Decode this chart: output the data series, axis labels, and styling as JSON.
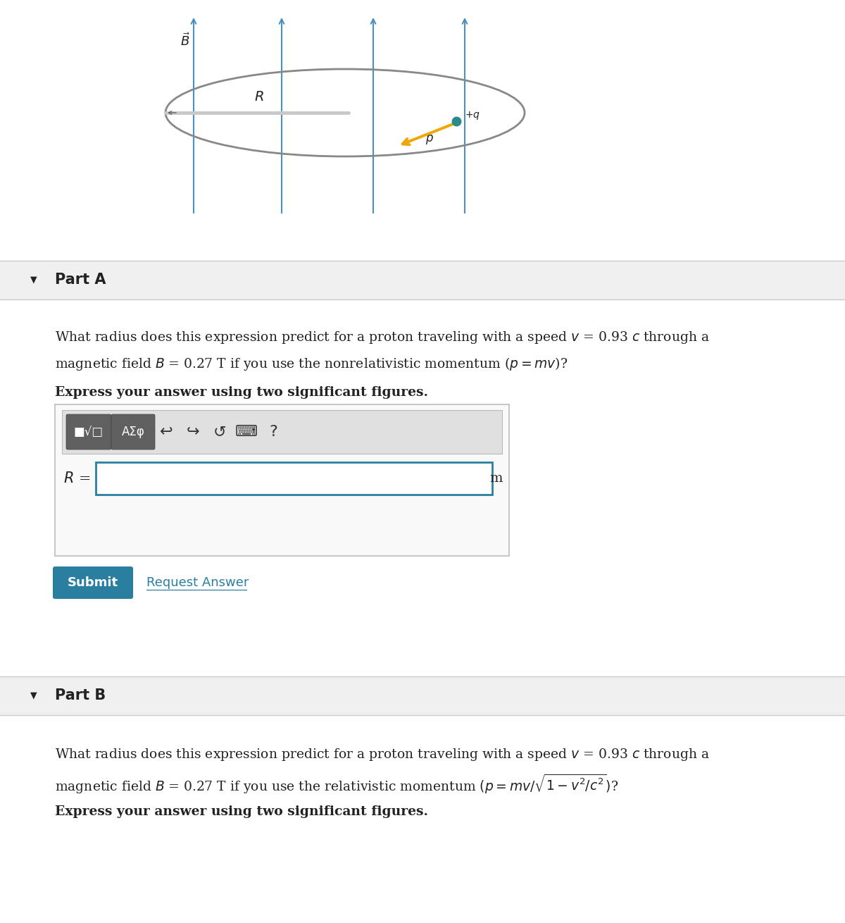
{
  "bg_color": "#ffffff",
  "part_header_bg": "#f0f0f0",
  "blue_line_color": "#4a90c4",
  "ellipse_color": "#888888",
  "radius_line_color": "#c8c8c8",
  "arrow_color": "#f0a500",
  "dot_color": "#2a8a8a",
  "text_color": "#222222",
  "submit_btn_color": "#2a7fa0",
  "submit_text_color": "#ffffff",
  "link_color": "#2a7fa0",
  "input_border_color": "#2a7fa0",
  "toolbar_bg": "#e0e0e0",
  "toolbar_btn_bg": "#606060",
  "part_A_label": "Part A",
  "part_B_label": "Part B",
  "express_text": "Express your answer using two significant figures.",
  "R_label": "$R$ =",
  "m_label": "m",
  "submit_label": "Submit",
  "request_label": "Request Answer",
  "B_label": "$\\vec{B}$",
  "R_diagram_label": "$R$",
  "p_label": "$p$",
  "q_label": "$+q$",
  "line1_A": "What radius does this expression predict for a proton traveling with a speed $v$ = 0.93 $c$ through a",
  "line2_A": "magnetic field $B$ = 0.27 T if you use the nonrelativistic momentum ($p = mv$)?",
  "line1_B": "What radius does this expression predict for a proton traveling with a speed $v$ = 0.93 $c$ through a",
  "line2_B": "magnetic field $B$ = 0.27 T if you use the relativistic momentum $(p = mv/\\sqrt{1-v^2/c^2})$?"
}
